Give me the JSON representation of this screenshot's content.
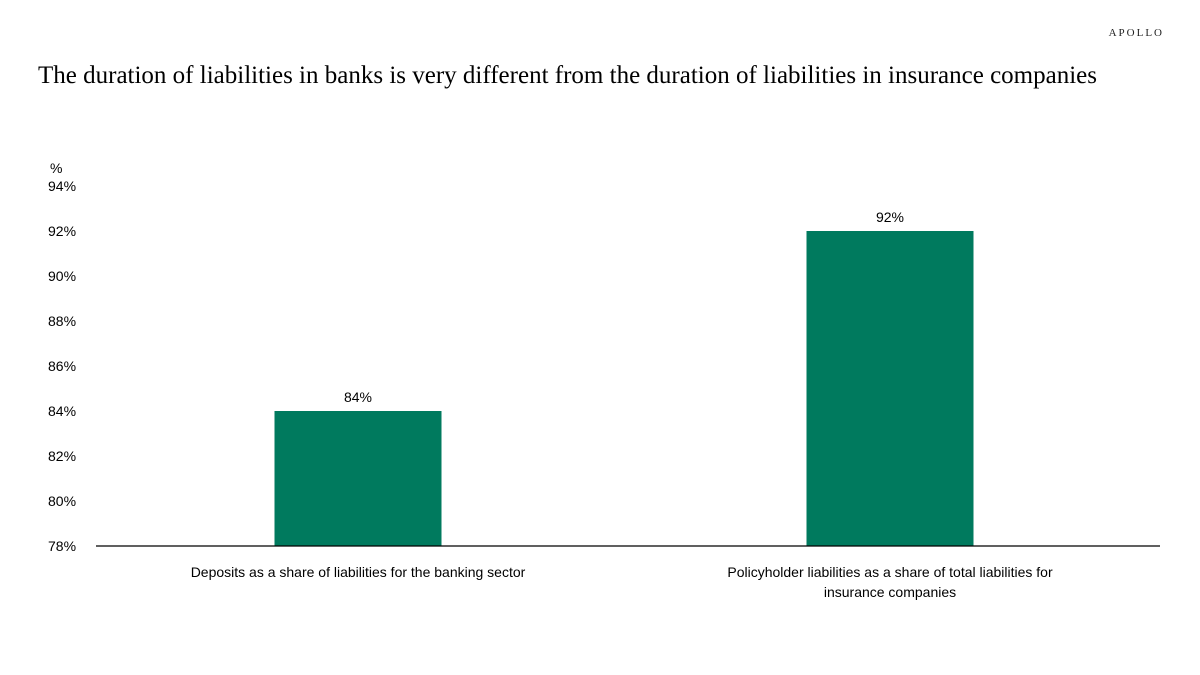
{
  "brand": "APOLLO",
  "title": "The duration of liabilities in banks is very different from the duration of liabilities in insurance companies",
  "chart_data": {
    "type": "bar",
    "categories": [
      "Deposits as a share of liabilities for the banking sector",
      "Policyholder liabilities as a share of total liabilities for insurance companies"
    ],
    "values": [
      84,
      92
    ],
    "data_labels": [
      "84%",
      "92%"
    ],
    "ylabel": "%",
    "ylim": [
      78,
      94
    ],
    "yticks": [
      78,
      80,
      82,
      84,
      86,
      88,
      90,
      92,
      94
    ],
    "ytick_labels": [
      "78%",
      "80%",
      "82%",
      "84%",
      "86%",
      "88%",
      "90%",
      "92%",
      "94%"
    ],
    "bar_color": "#007a5e",
    "grid": false,
    "legend": "none"
  }
}
